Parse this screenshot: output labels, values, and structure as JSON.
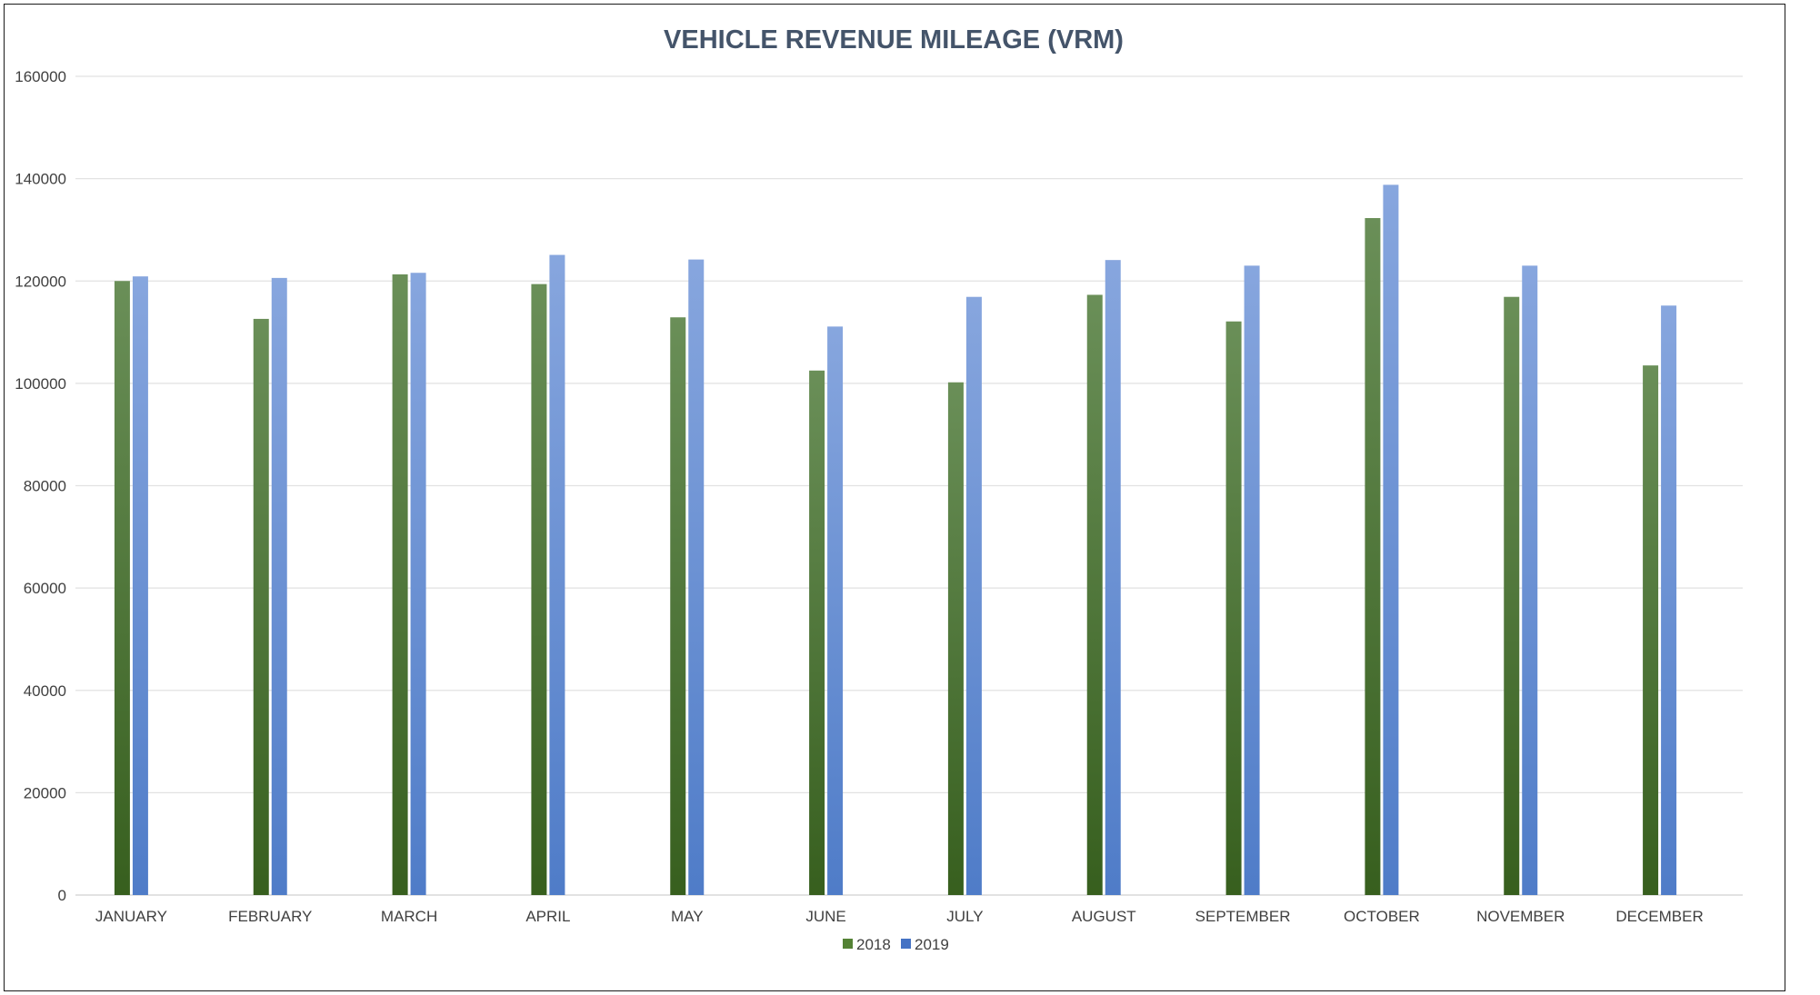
{
  "chart_data": {
    "type": "bar",
    "title": "VEHICLE REVENUE MILEAGE (VRM)",
    "xlabel": "",
    "ylabel": "",
    "categories": [
      "JANUARY",
      "FEBRUARY",
      "MARCH",
      "APRIL",
      "MAY",
      "JUNE",
      "JULY",
      "AUGUST",
      "SEPTEMBER",
      "OCTOBER",
      "NOVEMBER",
      "DECEMBER"
    ],
    "series": [
      {
        "name": "2018",
        "color": "#548235",
        "values": [
          120000,
          112600,
          121300,
          119400,
          112900,
          102500,
          100200,
          117300,
          112100,
          132300,
          116900,
          103500
        ]
      },
      {
        "name": "2019",
        "color": "#4472c4",
        "values": [
          120900,
          120600,
          121600,
          125100,
          124200,
          111100,
          116900,
          124100,
          123000,
          138800,
          123000,
          115200
        ]
      }
    ],
    "ylim": [
      0,
      160000
    ],
    "yticks": [
      0,
      20000,
      40000,
      60000,
      80000,
      100000,
      120000,
      140000,
      160000
    ],
    "grid": true,
    "legend_position": "bottom"
  }
}
